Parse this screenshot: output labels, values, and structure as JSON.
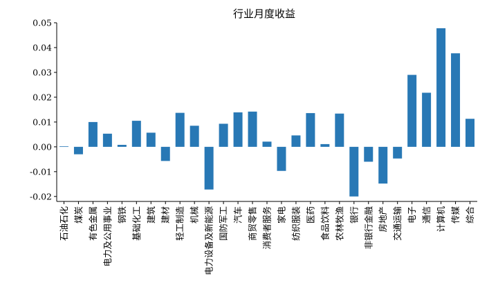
{
  "chart_data": {
    "type": "bar",
    "title": "行业月度收益",
    "xlabel": "",
    "ylabel": "",
    "ylim": [
      -0.022,
      0.05
    ],
    "yticks": [
      "-0.02",
      "-0.01",
      "0.00",
      "0.01",
      "0.02",
      "0.03",
      "0.04",
      "0.05"
    ],
    "bar_color": "#2878b5",
    "grid": false,
    "categories": [
      "石油石化",
      "煤炭",
      "有色金属",
      "电力及公用事业",
      "钢铁",
      "基础化工",
      "建筑",
      "建材",
      "轻工制造",
      "机械",
      "电力设备及新能源",
      "国防军工",
      "汽车",
      "商贸零售",
      "消费者服务",
      "家电",
      "纺织服装",
      "医药",
      "食品饮料",
      "农林牧渔",
      "银行",
      "非银行金融",
      "房地产",
      "交通运输",
      "电子",
      "通信",
      "计算机",
      "传媒",
      "综合"
    ],
    "values": [
      0.0002,
      -0.003,
      0.01,
      0.0053,
      0.0008,
      0.0105,
      0.0057,
      -0.0057,
      0.0137,
      0.0085,
      -0.0172,
      0.0093,
      0.0139,
      0.0142,
      0.0021,
      -0.0097,
      0.0046,
      0.0136,
      0.0011,
      0.0134,
      -0.02,
      -0.006,
      -0.0148,
      -0.0047,
      0.029,
      0.0218,
      0.0478,
      0.0377,
      0.0113
    ]
  }
}
